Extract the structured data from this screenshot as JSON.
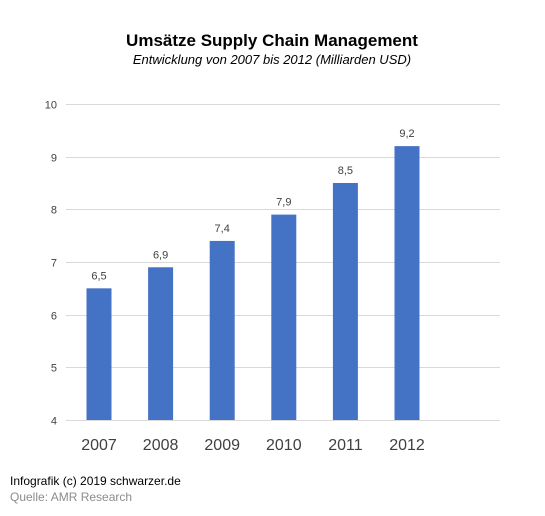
{
  "chart_data": {
    "type": "bar",
    "title": "Umsätze Supply Chain Management",
    "subtitle": "Entwicklung von 2007 bis 2012 (Milliarden USD)",
    "xlabel": "",
    "ylabel": "",
    "categories": [
      "2007",
      "2008",
      "2009",
      "2010",
      "2011",
      "2012"
    ],
    "values": [
      6.5,
      6.9,
      7.4,
      7.9,
      8.5,
      9.2
    ],
    "data_labels": [
      "6,5",
      "6,9",
      "7,4",
      "7,9",
      "8,5",
      "9,2"
    ],
    "ylim": [
      4,
      10
    ],
    "yticks": [
      "4",
      "5",
      "6",
      "7",
      "8",
      "9",
      "10"
    ],
    "grid": true,
    "legend": "none",
    "bar_color": "#4472c4",
    "grid_color": "#d9d9d9"
  },
  "footer": {
    "credit": "Infografik (c) 2019 schwarzer.de",
    "source": "Quelle: AMR Research"
  }
}
